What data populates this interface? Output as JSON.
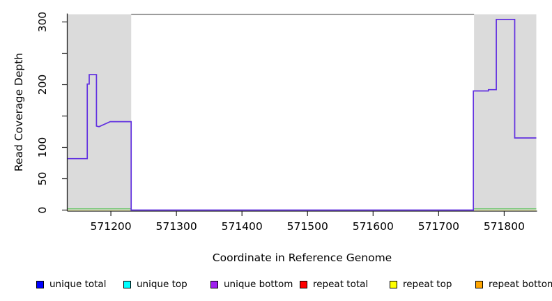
{
  "chart_data": {
    "type": "line",
    "title": "",
    "xlabel": "Coordinate in Reference Genome",
    "ylabel": "Read Coverage Depth",
    "xlim": [
      571134,
      571849
    ],
    "ylim": [
      0,
      312
    ],
    "grid": false,
    "x_ticks": {
      "values": [
        571200,
        571300,
        571400,
        571500,
        571600,
        571700,
        571800
      ],
      "labels": [
        "571200",
        "571300",
        "571400",
        "571500",
        "571600",
        "571700",
        "571800"
      ]
    },
    "y_ticks": {
      "values": [
        0,
        50,
        100,
        150,
        200,
        250,
        300
      ],
      "labels": [
        "0",
        "50",
        "100",
        "",
        "200",
        "",
        "300"
      ]
    },
    "shaded_regions": [
      {
        "name": "repeat-region-left",
        "from": 571134,
        "to": 571231,
        "color": "#dbdbdb"
      },
      {
        "name": "repeat-region-right",
        "from": 571754,
        "to": 571849,
        "color": "#dbdbdb"
      }
    ],
    "series": [
      {
        "name": "unique bottom (coincides with unique total)",
        "color": "#6130e0",
        "points": [
          [
            571134,
            82
          ],
          [
            571164,
            82
          ],
          [
            571164,
            201
          ],
          [
            571167,
            201
          ],
          [
            571167,
            216
          ],
          [
            571178,
            216
          ],
          [
            571178,
            134
          ],
          [
            571182,
            133
          ],
          [
            571199,
            141
          ],
          [
            571231,
            141
          ],
          [
            571231,
            0
          ],
          [
            571753,
            0
          ],
          [
            571753,
            190
          ],
          [
            571776,
            190
          ],
          [
            571776,
            192
          ],
          [
            571788,
            192
          ],
          [
            571788,
            304
          ],
          [
            571816,
            304
          ],
          [
            571816,
            115
          ],
          [
            571849,
            115
          ]
        ]
      }
    ],
    "zero_baseline_segments": [
      {
        "from": 571134,
        "to": 571231,
        "colors": [
          "#69c569",
          "#ececa0"
        ]
      },
      {
        "from": 571754,
        "to": 571849,
        "colors": [
          "#69c569",
          "#ececa0"
        ]
      }
    ],
    "legend": {
      "position": "bottom",
      "items": [
        {
          "label": "unique total",
          "color": "#0000ff"
        },
        {
          "label": "unique top",
          "color": "#00ffff"
        },
        {
          "label": "unique bottom",
          "color": "#a020f0"
        },
        {
          "label": "repeat total",
          "color": "#ff0000"
        },
        {
          "label": "repeat top",
          "color": "#ffff00"
        },
        {
          "label": "repeat bottom",
          "color": "#ffa500"
        }
      ]
    },
    "axis_color": "#222222",
    "plot_background": "#ffffff"
  }
}
